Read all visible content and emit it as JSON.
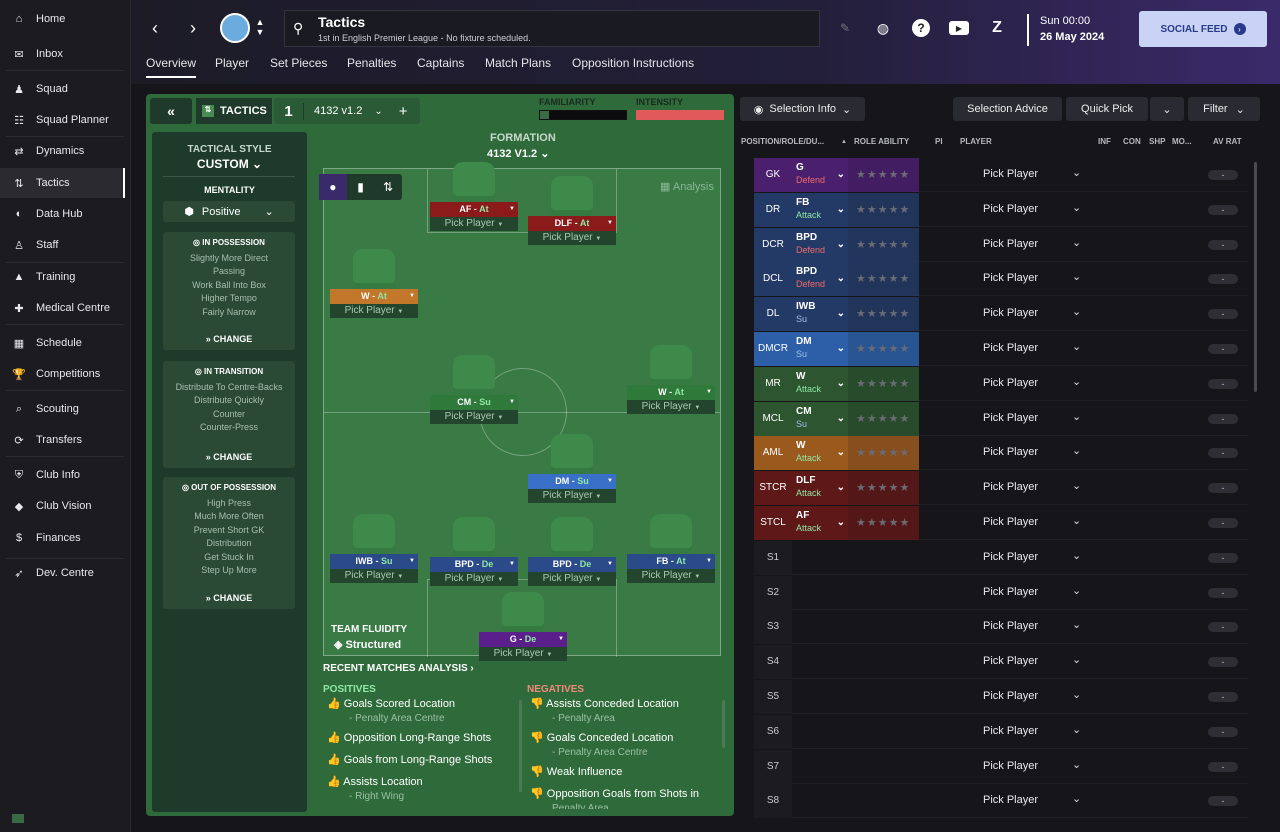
{
  "sidebar": {
    "items": [
      {
        "label": "Home",
        "icon": "home-icon"
      },
      {
        "label": "Inbox",
        "icon": "inbox-icon"
      },
      {
        "label": "Squad",
        "icon": "squad-icon"
      },
      {
        "label": "Squad Planner",
        "icon": "planner-icon"
      },
      {
        "label": "Dynamics",
        "icon": "dynamics-icon"
      },
      {
        "label": "Tactics",
        "icon": "tactics-icon"
      },
      {
        "label": "Data Hub",
        "icon": "datahub-icon"
      },
      {
        "label": "Staff",
        "icon": "staff-icon"
      },
      {
        "label": "Training",
        "icon": "training-icon"
      },
      {
        "label": "Medical Centre",
        "icon": "medical-icon"
      },
      {
        "label": "Schedule",
        "icon": "schedule-icon"
      },
      {
        "label": "Competitions",
        "icon": "trophy-icon"
      },
      {
        "label": "Scouting",
        "icon": "scouting-icon"
      },
      {
        "label": "Transfers",
        "icon": "transfers-icon"
      },
      {
        "label": "Club Info",
        "icon": "clubinfo-icon"
      },
      {
        "label": "Club Vision",
        "icon": "vision-icon"
      },
      {
        "label": "Finances",
        "icon": "finances-icon"
      },
      {
        "label": "Dev. Centre",
        "icon": "devcentre-icon"
      }
    ]
  },
  "topbar": {
    "title": "Tactics",
    "subtitle": "1st in English Premier League - No fixture scheduled.",
    "date_line1": "Sun 00:00",
    "date_line2": "26 May 2024",
    "social": "SOCIAL FEED"
  },
  "tabs": [
    "Overview",
    "Player",
    "Set Pieces",
    "Penalties",
    "Captains",
    "Match Plans",
    "Opposition Instructions"
  ],
  "tactic": {
    "label": "TACTICS",
    "slot": "1",
    "name": "4132 v1.2",
    "familiarity": "FAMILIARITY",
    "intensity": "INTENSITY",
    "formation_label": "FORMATION",
    "formation": "4132 V1.2",
    "analysis": "Analysis"
  },
  "style": {
    "heading": "TACTICAL STYLE",
    "value": "CUSTOM",
    "mentality_label": "MENTALITY",
    "mentality": "Positive",
    "in_possession": {
      "title": "IN POSSESSION",
      "lines": [
        "Slightly More Direct",
        "Passing",
        "Work Ball Into Box",
        "Higher Tempo",
        "Fairly Narrow"
      ]
    },
    "in_transition": {
      "title": "IN TRANSITION",
      "lines": [
        "Distribute To Centre-Backs",
        "Distribute Quickly",
        "Counter",
        "Counter-Press"
      ]
    },
    "out_possession": {
      "title": "OUT OF POSSESSION",
      "lines": [
        "High Press",
        "Much More Often",
        "Prevent Short GK",
        "Distribution",
        "Get Stuck In",
        "Step Up More"
      ]
    },
    "change": "CHANGE"
  },
  "pitch_players": [
    {
      "role": "AF",
      "duty": "At",
      "pick": "Pick Player",
      "color": "#8b1a1a"
    },
    {
      "role": "DLF",
      "duty": "At",
      "pick": "Pick Player",
      "color": "#8b1a1a"
    },
    {
      "role": "W",
      "duty": "At",
      "pick": "Pick Player",
      "color": "#c2772a"
    },
    {
      "role": "CM",
      "duty": "Su",
      "pick": "Pick Player",
      "color": "#2f7a3a"
    },
    {
      "role": "W",
      "duty": "At",
      "pick": "Pick Player",
      "color": "#2f7a3a"
    },
    {
      "role": "DM",
      "duty": "Su",
      "pick": "Pick Player",
      "color": "#3a6fc8"
    },
    {
      "role": "IWB",
      "duty": "Su",
      "pick": "Pick Player",
      "color": "#2a4a8a"
    },
    {
      "role": "BPD",
      "duty": "De",
      "pick": "Pick Player",
      "color": "#2a4a8a"
    },
    {
      "role": "BPD",
      "duty": "De",
      "pick": "Pick Player",
      "color": "#2a4a8a"
    },
    {
      "role": "FB",
      "duty": "At",
      "pick": "Pick Player",
      "color": "#2a4a8a"
    },
    {
      "role": "G",
      "duty": "De",
      "pick": "Pick Player",
      "color": "#5a1f8a"
    }
  ],
  "fluidity": {
    "label": "TEAM FLUIDITY",
    "value": "Structured"
  },
  "recent": {
    "title": "RECENT MATCHES ANALYSIS",
    "positives_title": "POSITIVES",
    "negatives_title": "NEGATIVES",
    "positives": [
      {
        "main": "Goals Scored Location",
        "sub": "- Penalty Area Centre"
      },
      {
        "main": "Opposition Long-Range Shots",
        "sub": ""
      },
      {
        "main": "Goals from Long-Range Shots",
        "sub": ""
      },
      {
        "main": "Assists Location",
        "sub": "- Right Wing"
      }
    ],
    "negatives": [
      {
        "main": "Assists Conceded Location",
        "sub": "- Penalty Area"
      },
      {
        "main": "Goals Conceded Location",
        "sub": "- Penalty Area Centre"
      },
      {
        "main": "Weak Influence",
        "sub": ""
      },
      {
        "main": "Opposition Goals from Shots in",
        "sub": "Penalty Area"
      }
    ]
  },
  "right": {
    "selection_info": "Selection Info",
    "selection_advice": "Selection Advice",
    "quick_pick": "Quick Pick",
    "filter": "Filter",
    "headers": [
      "POSITION/ROLE/DU...",
      "ROLE ABILITY",
      "PI",
      "PLAYER",
      "INF",
      "CON",
      "SHP",
      "MO...",
      "AV RAT"
    ],
    "rows": [
      {
        "pos": "GK",
        "role": "G",
        "duty": "Defend",
        "color": "#4a1f6e"
      },
      {
        "pos": "DR",
        "role": "FB",
        "duty": "Attack",
        "color": "#243a66"
      },
      {
        "pos": "DCR",
        "role": "BPD",
        "duty": "Defend",
        "color": "#243a66"
      },
      {
        "pos": "DCL",
        "role": "BPD",
        "duty": "Defend",
        "color": "#243a66"
      },
      {
        "pos": "DL",
        "role": "IWB",
        "duty": "Su",
        "color": "#243a66"
      },
      {
        "pos": "DMCR",
        "role": "DM",
        "duty": "Su",
        "color": "#2d5fa8"
      },
      {
        "pos": "MR",
        "role": "W",
        "duty": "Attack",
        "color": "#2c5530"
      },
      {
        "pos": "MCL",
        "role": "CM",
        "duty": "Su",
        "color": "#2c5530"
      },
      {
        "pos": "AML",
        "role": "W",
        "duty": "Attack",
        "color": "#9a5a1e"
      },
      {
        "pos": "STCR",
        "role": "DLF",
        "duty": "Attack",
        "color": "#5e1818"
      },
      {
        "pos": "STCL",
        "role": "AF",
        "duty": "Attack",
        "color": "#5e1818"
      },
      {
        "pos": "S1"
      },
      {
        "pos": "S2"
      },
      {
        "pos": "S3"
      },
      {
        "pos": "S4"
      },
      {
        "pos": "S5"
      },
      {
        "pos": "S6"
      },
      {
        "pos": "S7"
      },
      {
        "pos": "S8"
      }
    ],
    "pick": "Pick Player",
    "dash": "-",
    "stars": "★★★★★"
  }
}
